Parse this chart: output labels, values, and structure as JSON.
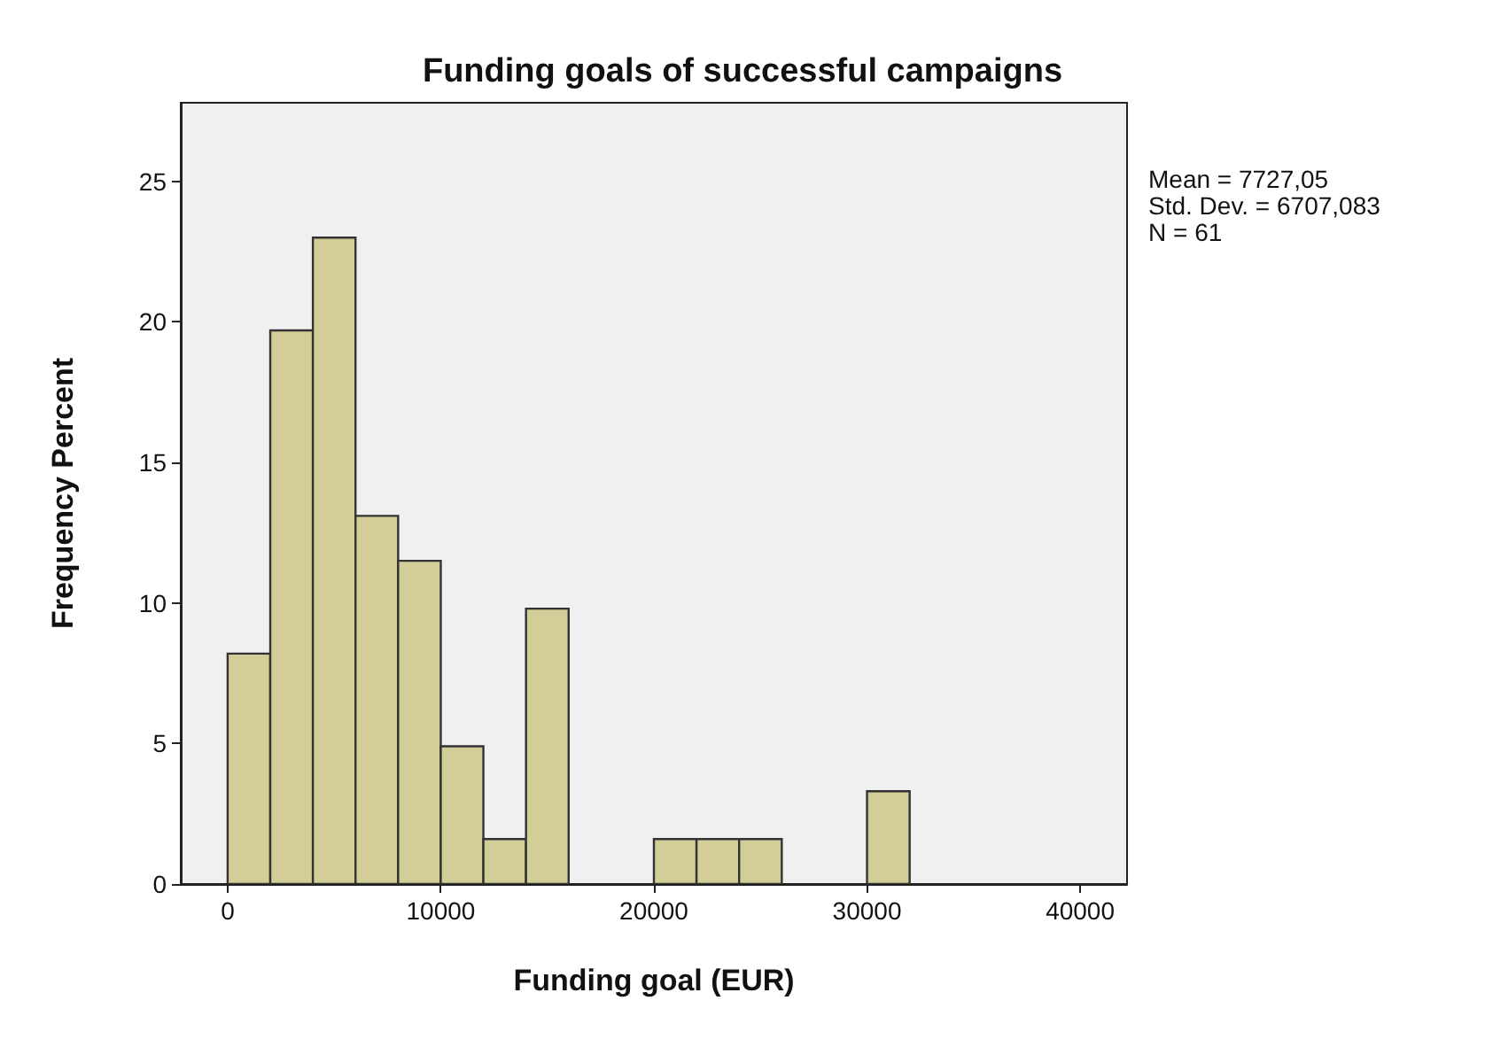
{
  "chart_data": {
    "type": "histogram",
    "title": "Funding goals of successful campaigns",
    "xlabel": "Funding goal (EUR)",
    "ylabel": "Frequency Percent",
    "bins": [
      0,
      2000,
      4000,
      6000,
      8000,
      10000,
      12000,
      14000,
      16000,
      18000,
      20000,
      22000,
      24000,
      26000,
      28000,
      30000,
      32000
    ],
    "values": [
      8.2,
      19.7,
      23.0,
      13.1,
      11.5,
      4.9,
      1.6,
      9.8,
      0,
      0,
      1.6,
      1.6,
      1.6,
      0,
      0,
      3.3
    ],
    "color": "#d3ce97",
    "xlim": [
      -2200,
      42200
    ],
    "xticks": [
      0,
      10000,
      20000,
      30000,
      40000
    ],
    "ylim": [
      0,
      27.8
    ],
    "yticks": [
      0,
      5,
      10,
      15,
      20,
      25
    ],
    "grid": false,
    "annotations": [
      "Mean = 7727,05",
      "Std. Dev. = 6707,083",
      "N = 61"
    ]
  }
}
